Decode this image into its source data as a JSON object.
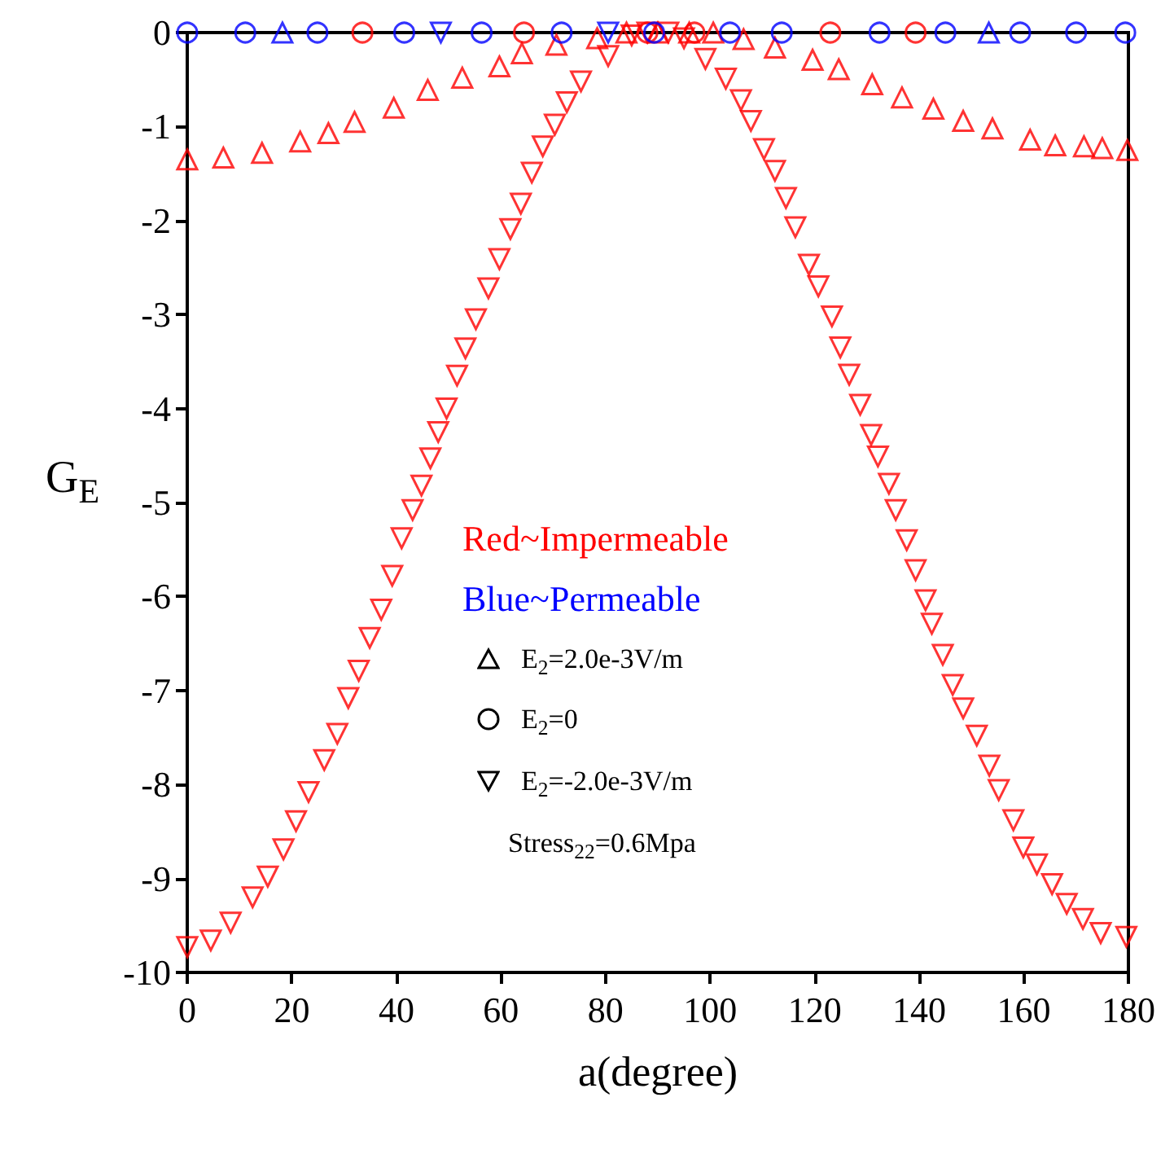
{
  "chart_data": {
    "type": "scatter",
    "xlabel": "a(degree)",
    "ylabel": "G$_{E}$",
    "xlim": [
      0,
      180
    ],
    "xticks": [
      0,
      20,
      40,
      60,
      80,
      100,
      120,
      140,
      160,
      180
    ],
    "ylim": [
      -10,
      0
    ],
    "yticks": [
      -10,
      -9,
      -8,
      -7,
      -6,
      -5,
      -4,
      -3,
      -2,
      -1,
      0
    ],
    "grid": false,
    "annotations": [
      "Red~Impermeable",
      "Blue~Permeable",
      "E$_{2}$=2.0e-3V/m",
      "E$_{2}$=0",
      "E$_{2}$=-2.0e-3V/m",
      "Stress$_{22}$=0.6Mpa"
    ],
    "series": [
      {
        "color": "#ff0000",
        "marker": "triangle",
        "x": [
          0,
          6.9,
          14.3,
          21.6,
          27,
          32,
          39.5,
          46,
          52.6,
          59.7,
          64,
          70.6,
          78.4,
          84,
          90,
          96,
          100.6,
          106.4,
          112.4,
          119.6,
          124.6,
          131,
          136.7,
          142.7,
          148.4,
          154,
          161.2,
          166,
          171.5,
          175,
          179.8
        ],
        "values": [
          -1.35,
          -1.33,
          -1.28,
          -1.16,
          -1.07,
          -0.95,
          -0.8,
          -0.61,
          -0.48,
          -0.36,
          -0.22,
          -0.13,
          -0.06,
          0,
          0,
          0,
          0,
          -0.07,
          -0.16,
          -0.29,
          -0.39,
          -0.55,
          -0.69,
          -0.81,
          -0.94,
          -1.02,
          -1.14,
          -1.2,
          -1.21,
          -1.23,
          -1.25
        ]
      },
      {
        "color": "#ff0000",
        "marker": "circle",
        "x": [
          33.5,
          64.4,
          88,
          97,
          123,
          139.3
        ],
        "values": [
          0,
          0,
          0,
          0,
          0,
          0
        ]
      },
      {
        "color": "#ff0000",
        "marker": "triangle-down",
        "x": [
          0,
          4.5,
          8.3,
          12.5,
          15.4,
          18.4,
          20.8,
          23.2,
          26.2,
          28.7,
          30.8,
          32.8,
          34.9,
          37.1,
          39.2,
          41,
          43.1,
          44.8,
          46.5,
          48,
          49.6,
          51.6,
          53.2,
          55.2,
          57.6,
          59.7,
          61.8,
          63.8,
          65.9,
          68,
          70.3,
          72.6,
          75.3,
          80.5,
          85,
          88,
          92,
          95,
          99.1,
          103,
          105.9,
          107.8,
          110.3,
          112.4,
          114.5,
          116.3,
          118.9,
          120.7,
          123.3,
          124.9,
          126.6,
          128.7,
          130.8,
          132.1,
          134.2,
          135.5,
          137.6,
          139.3,
          141.2,
          142.4,
          144.5,
          146.4,
          148.4,
          151,
          153.4,
          155.2,
          158,
          159.9,
          162.5,
          165.4,
          168.2,
          171.3,
          174.7,
          179.6
        ],
        "values": [
          -9.73,
          -9.66,
          -9.47,
          -9.2,
          -8.98,
          -8.69,
          -8.39,
          -8.08,
          -7.74,
          -7.46,
          -7.08,
          -6.79,
          -6.44,
          -6.14,
          -5.78,
          -5.38,
          -5.08,
          -4.82,
          -4.53,
          -4.25,
          -4,
          -3.65,
          -3.36,
          -3.05,
          -2.72,
          -2.41,
          -2.09,
          -1.82,
          -1.49,
          -1.21,
          -0.98,
          -0.74,
          -0.52,
          -0.25,
          -0.03,
          0,
          0,
          -0.06,
          -0.28,
          -0.49,
          -0.72,
          -0.94,
          -1.24,
          -1.47,
          -1.76,
          -2.07,
          -2.47,
          -2.7,
          -3.02,
          -3.35,
          -3.64,
          -3.96,
          -4.28,
          -4.51,
          -4.8,
          -5.08,
          -5.4,
          -5.72,
          -6.04,
          -6.29,
          -6.62,
          -6.94,
          -7.19,
          -7.48,
          -7.8,
          -8.06,
          -8.38,
          -8.67,
          -8.85,
          -9.06,
          -9.27,
          -9.43,
          -9.58,
          -9.62
        ]
      },
      {
        "color": "#0000ff",
        "marker": "triangle",
        "x": [
          18.2,
          153.3
        ],
        "values": [
          0,
          0
        ]
      },
      {
        "color": "#0000ff",
        "marker": "circle",
        "x": [
          0,
          11.1,
          24.9,
          41.5,
          56.3,
          71.6,
          89.3,
          103.8,
          113.7,
          132.4,
          145,
          159.3,
          170,
          179.4
        ],
        "values": [
          0,
          0,
          0,
          0,
          0,
          0,
          0,
          0,
          0,
          0,
          0,
          0,
          0,
          0
        ]
      },
      {
        "color": "#0000ff",
        "marker": "triangle-down",
        "x": [
          48.5,
          80.5
        ],
        "values": [
          0,
          0
        ]
      }
    ]
  }
}
